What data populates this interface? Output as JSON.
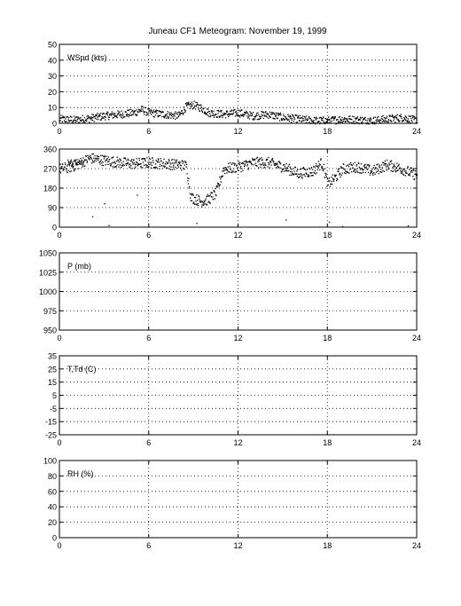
{
  "title": "Juneau CF1 Meteogram:  November 19, 1999",
  "chart_data": [
    {
      "type": "scatter",
      "label": "WSpd (kts)",
      "x_ticks": [
        "0",
        "6",
        "12",
        "18",
        "24"
      ],
      "xlim": [
        0,
        24
      ],
      "y_ticks": [
        "0",
        "10",
        "20",
        "30",
        "40",
        "50"
      ],
      "ylim": [
        0,
        50
      ],
      "grid": true,
      "trend": [
        [
          0,
          3
        ],
        [
          1,
          2.5
        ],
        [
          2,
          3.5
        ],
        [
          3,
          5
        ],
        [
          4,
          6
        ],
        [
          5,
          7
        ],
        [
          5.5,
          9
        ],
        [
          6,
          7
        ],
        [
          7,
          6
        ],
        [
          8,
          5
        ],
        [
          8.5,
          11
        ],
        [
          9,
          12
        ],
        [
          9.5,
          10
        ],
        [
          10,
          7
        ],
        [
          11,
          6
        ],
        [
          12,
          7
        ],
        [
          13,
          5
        ],
        [
          14,
          6
        ],
        [
          15,
          4
        ],
        [
          16,
          3
        ],
        [
          17,
          2
        ],
        [
          18,
          2
        ],
        [
          19,
          3
        ],
        [
          20,
          2.5
        ],
        [
          21,
          2
        ],
        [
          22,
          3
        ],
        [
          23,
          4
        ],
        [
          24,
          2
        ]
      ],
      "spread": 2.5
    },
    {
      "type": "scatter",
      "label": "WDir",
      "x_ticks": [
        "0",
        "6",
        "12",
        "18",
        "24"
      ],
      "xlim": [
        0,
        24
      ],
      "y_ticks": [
        "0",
        "90",
        "180",
        "270",
        "360"
      ],
      "ylim": [
        0,
        360
      ],
      "grid": true,
      "trend": [
        [
          0,
          270
        ],
        [
          1,
          285
        ],
        [
          2,
          320
        ],
        [
          3,
          310
        ],
        [
          4,
          300
        ],
        [
          5,
          295
        ],
        [
          6,
          300
        ],
        [
          7,
          295
        ],
        [
          8,
          290
        ],
        [
          8.5,
          285
        ],
        [
          8.8,
          140
        ],
        [
          9.5,
          120
        ],
        [
          10,
          130
        ],
        [
          10.5,
          160
        ],
        [
          11,
          270
        ],
        [
          12,
          280
        ],
        [
          13,
          300
        ],
        [
          14,
          300
        ],
        [
          15,
          280
        ],
        [
          16,
          250
        ],
        [
          17,
          260
        ],
        [
          17.6,
          300
        ],
        [
          18,
          200
        ],
        [
          18.5,
          230
        ],
        [
          19,
          270
        ],
        [
          20,
          280
        ],
        [
          21,
          260
        ],
        [
          22,
          290
        ],
        [
          23,
          270
        ],
        [
          24,
          240
        ]
      ],
      "spread": 25,
      "outliers": [
        [
          2.2,
          50
        ],
        [
          3.0,
          110
        ],
        [
          3.3,
          10
        ],
        [
          5.2,
          150
        ],
        [
          9.2,
          20
        ],
        [
          15.2,
          35
        ],
        [
          18.1,
          25
        ],
        [
          19.0,
          5
        ],
        [
          23.4,
          8
        ]
      ]
    },
    {
      "type": "scatter",
      "label": "P (mb)",
      "x_ticks": [
        "0",
        "6",
        "12",
        "18",
        "24"
      ],
      "xlim": [
        0,
        24
      ],
      "y_ticks": [
        "950",
        "975",
        "1000",
        "1025",
        "1050"
      ],
      "ylim": [
        950,
        1050
      ],
      "grid": true
    },
    {
      "type": "scatter",
      "label": "T,Td (C)",
      "x_ticks": [
        "0",
        "6",
        "12",
        "18",
        "24"
      ],
      "xlim": [
        0,
        24
      ],
      "y_ticks": [
        "-25",
        "-15",
        "-5",
        "5",
        "15",
        "25",
        "35"
      ],
      "ylim": [
        -25,
        35
      ],
      "grid": true
    },
    {
      "type": "scatter",
      "label": "RH (%)",
      "x_ticks": [
        "0",
        "6",
        "12",
        "18",
        "24"
      ],
      "xlim": [
        0,
        24
      ],
      "y_ticks": [
        "0",
        "20",
        "40",
        "60",
        "80",
        "100"
      ],
      "ylim": [
        0,
        100
      ],
      "grid": true
    }
  ]
}
